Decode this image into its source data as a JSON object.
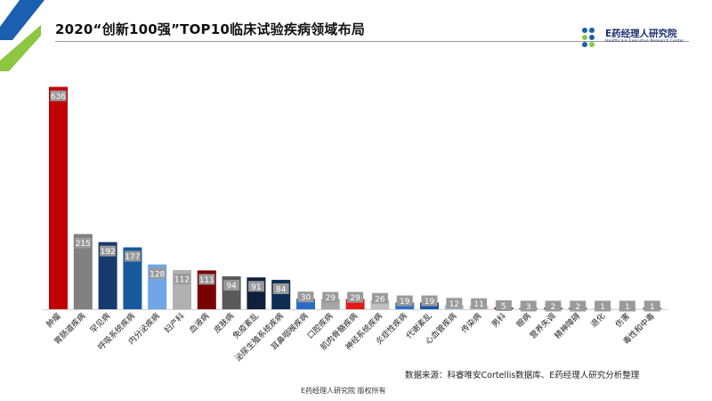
{
  "title": "2020“创新100强”TOP10临床试验疾病领域布局",
  "logo": {
    "name": "E药经理人研究院",
    "subtitle": "Healthcare Executive Research Center"
  },
  "source": "数据来源：科睿唯安Cortellis数据库、E药经理人研究分析整理",
  "footer": "E药经理人研究院  版权所有",
  "colors": {
    "accent_blue": "#1a5fb0",
    "accent_green": "#8dc63f"
  },
  "chart_data": {
    "type": "bar",
    "categories": [
      "肿瘤",
      "胃肠道疾病",
      "罕见病",
      "呼吸系统疾病",
      "内分泌疾病",
      "妇产科",
      "血液病",
      "皮肤病",
      "免疫紊乱",
      "泌尿生殖系统疾病",
      "耳鼻咽喉疾病",
      "口腔疾病",
      "肌肉骨骼疾病",
      "神经系统疾病",
      "炎症性疾病",
      "代谢紊乱",
      "心血管疾病",
      "传染病",
      "男科",
      "眼病",
      "营养失调",
      "精神障碍",
      "退化",
      "伤害",
      "毒性和中毒"
    ],
    "values": [
      636,
      215,
      192,
      177,
      128,
      112,
      111,
      94,
      91,
      84,
      30,
      29,
      29,
      26,
      19,
      19,
      12,
      11,
      5,
      3,
      2,
      2,
      1,
      1,
      1
    ],
    "colors": [
      "#c00000",
      "#808080",
      "#163a6e",
      "#17599c",
      "#6ea6e8",
      "#b0b0b0",
      "#7b0000",
      "#595959",
      "#101f3c",
      "#0d2e52",
      "#2a6bc8",
      "#a6a6a6",
      "#e31a1a",
      "#bfbfbf",
      "#2f6fd0",
      "#1d56ad",
      "#9ec4ea",
      "#c8c8c8",
      "#8b0000",
      "#7f7f7f",
      "#1e3a70",
      "#1a508f",
      "#9dc3ea",
      "#cfcfcf",
      "#d42020"
    ],
    "ylim": [
      0,
      650
    ]
  }
}
